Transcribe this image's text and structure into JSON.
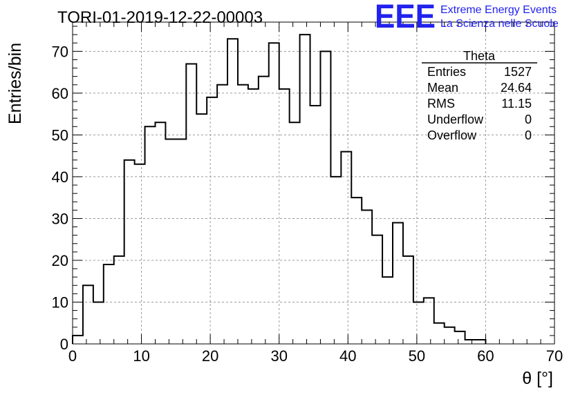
{
  "logo": {
    "mark": "EEE",
    "line1": "Extreme Energy Events",
    "line2": "La Scienza nelle Scuole",
    "color": "#2222ee"
  },
  "stats": {
    "name": "Theta",
    "rows": [
      {
        "label": "Entries",
        "value": "1527"
      },
      {
        "label": "Mean",
        "value": "24.64"
      },
      {
        "label": "RMS",
        "value": "11.15"
      },
      {
        "label": "Underflow",
        "value": "0"
      },
      {
        "label": "Overflow",
        "value": "0"
      }
    ]
  },
  "chart_data": {
    "type": "histogram",
    "title": "TORI-01-2019-12-22-00003",
    "xlabel": "θ [°]",
    "ylabel": "Entries/bin",
    "xlim": [
      0,
      70
    ],
    "ylim": [
      0,
      77
    ],
    "bin_width": 1.5,
    "bin_edges_start": 0,
    "values": [
      2,
      14,
      10,
      19,
      21,
      44,
      43,
      52,
      53,
      49,
      49,
      67,
      55,
      59,
      62,
      73,
      62,
      61,
      64,
      72,
      61,
      53,
      74,
      57,
      70,
      40,
      46,
      35,
      32,
      26,
      16,
      29,
      21,
      10,
      11,
      5,
      4,
      3,
      1,
      1
    ],
    "x_ticks": [
      0,
      10,
      20,
      30,
      40,
      50,
      60,
      70
    ],
    "y_ticks": [
      0,
      10,
      20,
      30,
      40,
      50,
      60,
      70
    ],
    "grid": true,
    "line_color": "#000000"
  }
}
